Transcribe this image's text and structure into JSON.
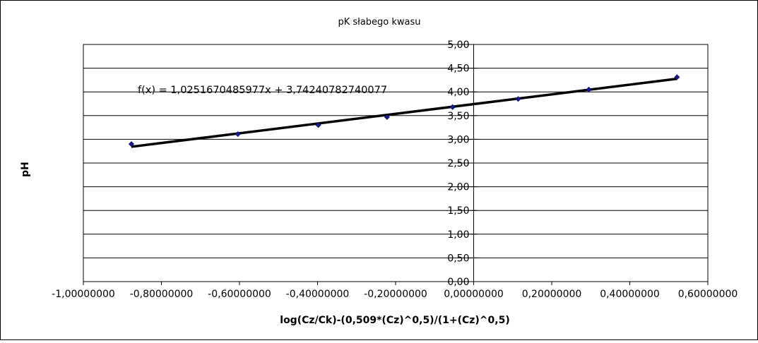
{
  "chart_data": {
    "type": "scatter",
    "title": "pK słabego kwasu",
    "xlabel": "log(Cz/Ck)-(0,509*(Cz)^0,5)/(1+(Cz)^0,5)",
    "ylabel": "pH",
    "xlim": [
      -1.0,
      0.6
    ],
    "ylim": [
      0.0,
      5.0
    ],
    "x_ticks": [
      -1.0,
      -0.8,
      -0.6,
      -0.4,
      -0.2,
      0.0,
      0.2,
      0.4,
      0.6
    ],
    "y_ticks": [
      0.0,
      0.5,
      1.0,
      1.5,
      2.0,
      2.5,
      3.0,
      3.5,
      4.0,
      4.5,
      5.0
    ],
    "x_tick_labels": [
      "-1,00000000",
      "-0,80000000",
      "-0,60000000",
      "-0,40000000",
      "-0,20000000",
      "0,00000000",
      "0,20000000",
      "0,40000000",
      "0,60000000"
    ],
    "y_tick_labels": [
      "0,00",
      "0,50",
      "1,00",
      "1,50",
      "2,00",
      "2,50",
      "3,00",
      "3,50",
      "4,00",
      "4,50",
      "5,00"
    ],
    "grid": "horizontal",
    "series": [
      {
        "color": "#1a1a8c",
        "points": [
          {
            "x": -0.877,
            "y": 2.9
          },
          {
            "x": -0.604,
            "y": 3.11
          },
          {
            "x": -0.398,
            "y": 3.3
          },
          {
            "x": -0.222,
            "y": 3.47
          },
          {
            "x": -0.054,
            "y": 3.68
          },
          {
            "x": 0.114,
            "y": 3.85
          },
          {
            "x": 0.295,
            "y": 4.05
          },
          {
            "x": 0.521,
            "y": 4.31
          }
        ]
      }
    ],
    "trendline": {
      "slope": 1.0251670485977,
      "intercept": 3.74240782740077,
      "x_range": [
        -0.877,
        0.521
      ],
      "label": "f(x) = 1,0251670485977x + 3,74240782740077",
      "color": "#000000"
    }
  }
}
